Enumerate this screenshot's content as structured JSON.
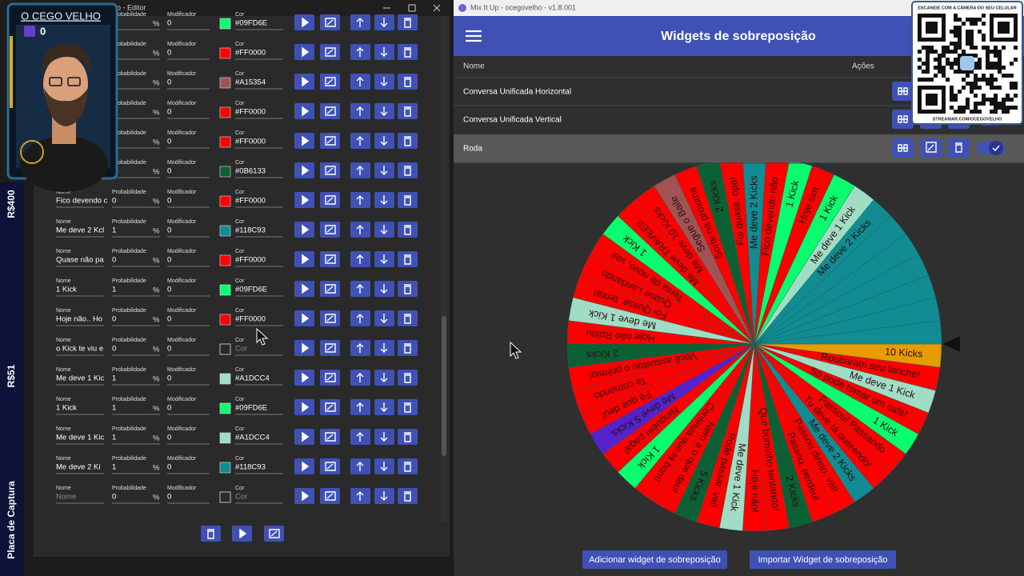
{
  "overlay": {
    "streamer": "O CEGO VELHO",
    "count": "0",
    "side_labels": [
      "R$400",
      "R$51",
      "Placa de Captura"
    ]
  },
  "editor": {
    "title": "sição - Editor",
    "labels": {
      "name": "Nome",
      "probability": "Probabilidade",
      "modifier": "Modificador",
      "color": "Cor",
      "percent": "%"
    },
    "rows": [
      {
        "modifier": 0,
        "color": "#09FD6E"
      },
      {
        "modifier": 0,
        "color": "#FF0000"
      },
      {
        "modifier": 0,
        "color": "#A15354"
      },
      {
        "modifier": 0,
        "color": "#FF0000"
      },
      {
        "modifier": 0,
        "color": "#FF0000"
      },
      {
        "modifier": 0,
        "color": "#0B6133"
      },
      {
        "name": "Fico devendo c",
        "probability": 0,
        "modifier": 0,
        "color": "#FF0000"
      },
      {
        "name": "Me deve 2 Kcl",
        "probability": 1,
        "modifier": 0,
        "color": "#118C93"
      },
      {
        "name": "Quase não pa",
        "probability": 0,
        "modifier": 0,
        "color": "#FF0000"
      },
      {
        "name": "1 Kick",
        "probability": 1,
        "modifier": 0,
        "color": "#09FD6E"
      },
      {
        "name": "Hoje não.. Ho",
        "probability": 0,
        "modifier": 0,
        "color": "#FF0000"
      },
      {
        "name": "o Kick te viu e",
        "probability": 0,
        "modifier": 0
      },
      {
        "name": "Me deve 1 Kic",
        "probability": 1,
        "modifier": 0,
        "color": "#A1DCC4"
      },
      {
        "name": "1 Kick",
        "probability": 1,
        "modifier": 0,
        "color": "#09FD6E"
      },
      {
        "name": "Me deve 1 Kic",
        "probability": 1,
        "modifier": 0,
        "color": "#A1DCC4"
      },
      {
        "name": "Me deve 2 Ki",
        "probability": 1,
        "modifier": 0,
        "color": "#118C93"
      },
      {
        "probability": 0,
        "modifier": 0
      }
    ]
  },
  "mixitup": {
    "window_title": "Mix It Up - ocegovelho - v1.8.001",
    "header": "Widgets de sobreposição",
    "columns": [
      "Nome",
      "Ações"
    ],
    "widgets": [
      "Conversa Unificada Horizontal",
      "Conversa Unificada Vertical",
      "Roda"
    ],
    "buttons": [
      "Adicionar widget de sobreposição",
      "Importar Widget de sobreposição"
    ]
  },
  "wheel": {
    "segments": [
      {
        "label": "10 Kicks",
        "color": "#E69B00"
      },
      {
        "label": "Roubaram seu lanche!",
        "color": "#FF0000"
      },
      {
        "label": "Me deve 1 Kick",
        "color": "#A1DCC4"
      },
      {
        "label": "Só pode tomar um café!",
        "color": "#FF0000"
      },
      {
        "label": "1 Kick",
        "color": "#09FD6E"
      },
      {
        "label": "Passou! Passando",
        "color": "#FF0000"
      },
      {
        "label": "Tu deve tá querendo!",
        "color": "#FF0000"
      },
      {
        "label": "Me deve 2 Kicks",
        "color": "#118C93"
      },
      {
        "label": "Passou direto, vai!",
        "color": "#FF0000"
      },
      {
        "label": "Passou, perdeu!",
        "color": "#FF0000"
      },
      {
        "label": "2 Kicks",
        "color": "#0B6133"
      },
      {
        "label": "Que bominho tentando!",
        "color": "#FF0000"
      },
      {
        "label": "Hoje não!",
        "color": "#FF0000"
      },
      {
        "label": "Me deve 1 Kick",
        "color": "#A1DCC4"
      },
      {
        "label": "Pode passar, vai!",
        "color": "#FF0000"
      },
      {
        "label": "5 Kicks",
        "color": "#0B6133"
      },
      {
        "label": "Nem a o que deu!",
        "color": "#FF0000"
      },
      {
        "label": "Continua que tá bom!",
        "color": "#FF0000"
      },
      {
        "label": "1 Kick",
        "color": "#09FD6E"
      },
      {
        "label": "Ninguém paga!",
        "color": "#FF0000"
      },
      {
        "label": "Me deve 5 Kicks",
        "color": "#5522CC"
      },
      {
        "label": "Fé que deu!",
        "color": "#FF0000"
      },
      {
        "label": "Te comendo",
        "color": "#FF0000"
      },
      {
        "label": "Você assustou o prêmio!",
        "color": "#FF0000"
      },
      {
        "label": "2 Kicks",
        "color": "#0B6133"
      },
      {
        "label": "Hoje não Rolou",
        "color": "#FF0000"
      },
      {
        "label": "Me deve 1 Kick",
        "color": "#A1DCC4"
      },
      {
        "label": "Foi Quase, tenta!",
        "color": "#FF0000"
      },
      {
        "label": "Quase Landando",
        "color": "#FF0000"
      },
      {
        "label": "Tenta de novo, vai!",
        "color": "#FF0000"
      },
      {
        "label": "1 Kick",
        "color": "#09FD6E"
      },
      {
        "label": "Me deve TRAVEEI!",
        "color": "#FF0000"
      },
      {
        "label": "Me deve 10 Kicks",
        "color": "#FF0000"
      },
      {
        "label": "Segue o Baile",
        "color": "#A15354"
      },
      {
        "label": "Sorte na próxima",
        "color": "#FF0000"
      },
      {
        "label": "2 Kicks",
        "color": "#0B6133"
      },
      {
        "label": "Foi quase, opa!",
        "color": "#FF0000"
      },
      {
        "label": "Me deve 2 Kicks",
        "color": "#118C93"
      },
      {
        "label": "Fico devendo não",
        "color": "#FF0000"
      },
      {
        "label": "1 Kick",
        "color": "#09FD6E"
      },
      {
        "label": "Hoje sim",
        "color": "#FF0000"
      },
      {
        "label": "1 Kick",
        "color": "#09FD6E"
      },
      {
        "label": "Me deve 1 Kick",
        "color": "#A1DCC4"
      },
      {
        "label": "Me deve 2 Kicks",
        "color": "#118C93"
      },
      {
        "color": "#118C93"
      },
      {
        "color": "#118C93"
      },
      {
        "color": "#118C93"
      },
      {
        "color": "#118C93"
      },
      {
        "color": "#118C93"
      },
      {
        "color": "#118C93"
      }
    ]
  },
  "qr": {
    "top": "ESCANEIE COM A CÂMERA DO SEU CELULAR",
    "bottom": "STREAMAR.COM/OCEGOVELHO"
  }
}
